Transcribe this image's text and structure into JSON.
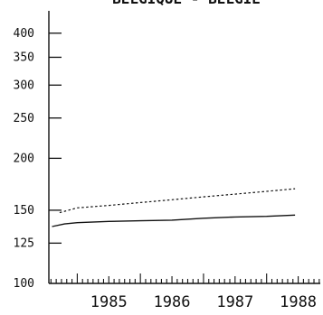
{
  "chart_data": {
    "type": "line",
    "title": "BELGIQUE - BELGIË",
    "xlabel": "",
    "ylabel": "",
    "y_scale": "log",
    "ylim": [
      100,
      420
    ],
    "y_ticks": [
      100,
      125,
      150,
      200,
      250,
      300,
      350,
      400
    ],
    "x_year_labels": [
      "1985",
      "1986",
      "1987",
      "1988"
    ],
    "x_range": [
      1984.55,
      1988.85
    ],
    "grid": false,
    "series": [
      {
        "style": "dotted",
        "x": [
          1984.72,
          1985.0,
          1985.5,
          1986.0,
          1986.5,
          1987.0,
          1987.5,
          1988.0,
          1988.45
        ],
        "values": [
          148,
          152,
          154,
          156.5,
          159,
          161.5,
          164,
          166.5,
          169
        ]
      },
      {
        "style": "solid",
        "x": [
          1984.6,
          1984.8,
          1985.0,
          1985.5,
          1986.0,
          1986.5,
          1987.0,
          1987.5,
          1988.0,
          1988.45
        ],
        "values": [
          137,
          139,
          140,
          141,
          141.5,
          142,
          143.5,
          144.5,
          145,
          146
        ]
      }
    ]
  }
}
